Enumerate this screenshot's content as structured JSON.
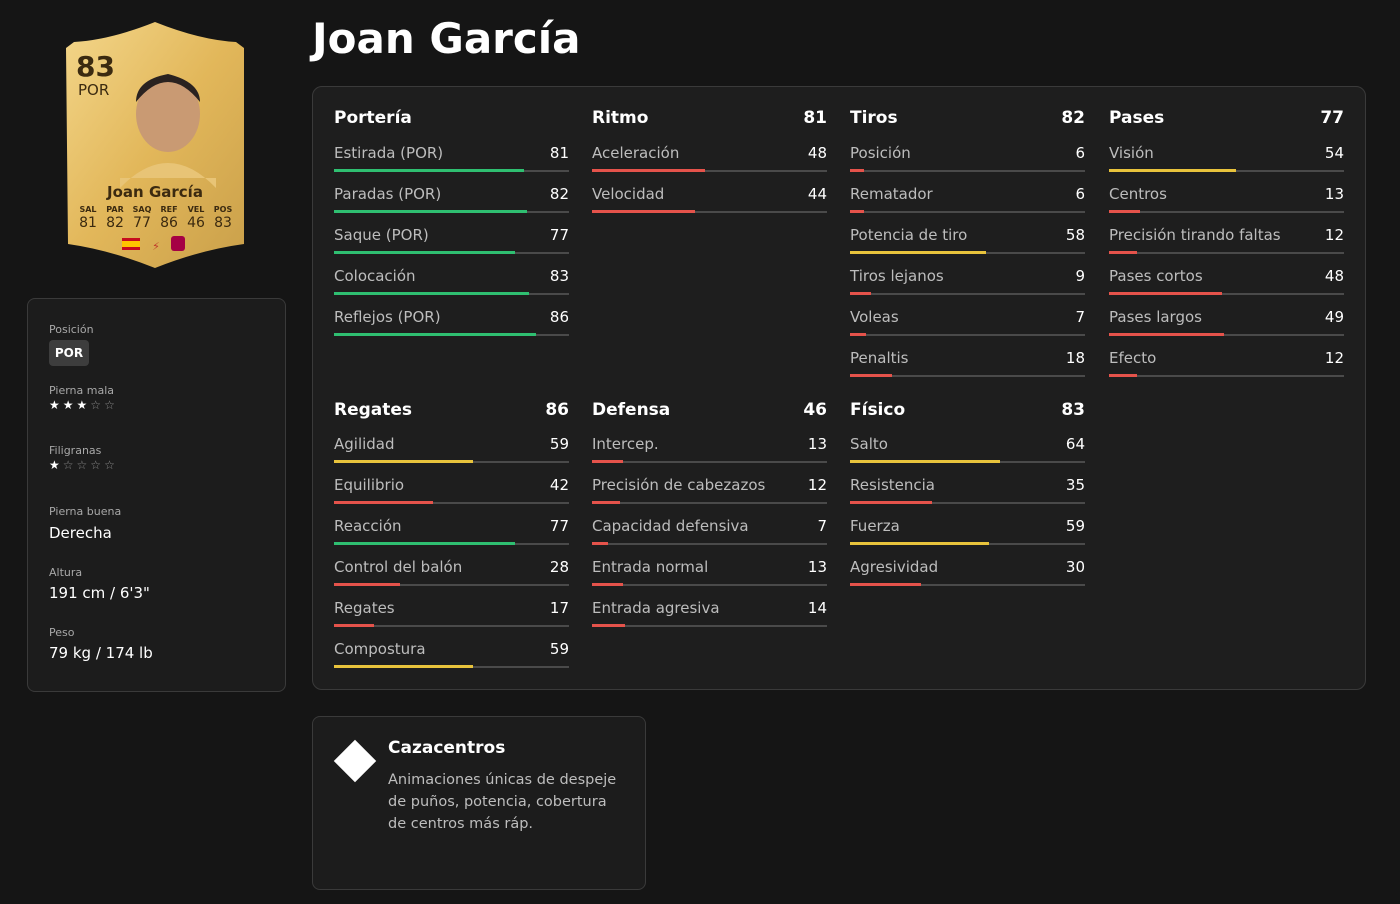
{
  "title": "Joan García",
  "card": {
    "rating": 83,
    "position": "POR",
    "name": "Joan García",
    "stats": [
      {
        "label": "SAL",
        "value": 81
      },
      {
        "label": "PAR",
        "value": 82
      },
      {
        "label": "SAQ",
        "value": 77
      },
      {
        "label": "REF",
        "value": 86
      },
      {
        "label": "VEL",
        "value": 46
      },
      {
        "label": "POS",
        "value": 83
      }
    ]
  },
  "profile": {
    "position": {
      "label": "Posición",
      "value": "POR"
    },
    "weak_foot": {
      "label": "Pierna mala",
      "stars": 3
    },
    "skill_moves": {
      "label": "Filigranas",
      "stars": 1
    },
    "preferred_foot": {
      "label": "Pierna buena",
      "value": "Derecha"
    },
    "height": {
      "label": "Altura",
      "value": "191 cm / 6'3\""
    },
    "weight": {
      "label": "Peso",
      "value": "79 kg / 174 lb"
    }
  },
  "attributes": [
    {
      "name": "Portería",
      "stats": [
        {
          "name": "Estirada (POR)",
          "value": 81
        },
        {
          "name": "Paradas (POR)",
          "value": 82
        },
        {
          "name": "Saque (POR)",
          "value": 77
        },
        {
          "name": "Colocación",
          "value": 83
        },
        {
          "name": "Reflejos (POR)",
          "value": 86
        }
      ]
    },
    {
      "name": "Ritmo",
      "total": 81,
      "stats": [
        {
          "name": "Aceleración",
          "value": 48
        },
        {
          "name": "Velocidad",
          "value": 44
        }
      ]
    },
    {
      "name": "Tiros",
      "total": 82,
      "stats": [
        {
          "name": "Posición",
          "value": 6
        },
        {
          "name": "Rematador",
          "value": 6
        },
        {
          "name": "Potencia de tiro",
          "value": 58
        },
        {
          "name": "Tiros lejanos",
          "value": 9
        },
        {
          "name": "Voleas",
          "value": 7
        },
        {
          "name": "Penaltis",
          "value": 18
        }
      ]
    },
    {
      "name": "Pases",
      "total": 77,
      "stats": [
        {
          "name": "Visión",
          "value": 54
        },
        {
          "name": "Centros",
          "value": 13
        },
        {
          "name": "Precisión tirando faltas",
          "value": 12
        },
        {
          "name": "Pases cortos",
          "value": 48
        },
        {
          "name": "Pases largos",
          "value": 49
        },
        {
          "name": "Efecto",
          "value": 12
        }
      ]
    },
    {
      "name": "Regates",
      "total": 86,
      "stats": [
        {
          "name": "Agilidad",
          "value": 59
        },
        {
          "name": "Equilibrio",
          "value": 42
        },
        {
          "name": "Reacción",
          "value": 77
        },
        {
          "name": "Control del balón",
          "value": 28
        },
        {
          "name": "Regates",
          "value": 17
        },
        {
          "name": "Compostura",
          "value": 59
        }
      ]
    },
    {
      "name": "Defensa",
      "total": 46,
      "stats": [
        {
          "name": "Intercep.",
          "value": 13
        },
        {
          "name": "Precisión de cabezazos",
          "value": 12
        },
        {
          "name": "Capacidad defensiva",
          "value": 7
        },
        {
          "name": "Entrada normal",
          "value": 13
        },
        {
          "name": "Entrada agresiva",
          "value": 14
        }
      ]
    },
    {
      "name": "Físico",
      "total": 83,
      "stats": [
        {
          "name": "Salto",
          "value": 64
        },
        {
          "name": "Resistencia",
          "value": 35
        },
        {
          "name": "Fuerza",
          "value": 59
        },
        {
          "name": "Agresividad",
          "value": 30
        }
      ]
    }
  ],
  "playstyle": {
    "name": "Cazacentros",
    "description": "Animaciones únicas de despeje de puños, potencia, cobertura de centros más ráp."
  }
}
